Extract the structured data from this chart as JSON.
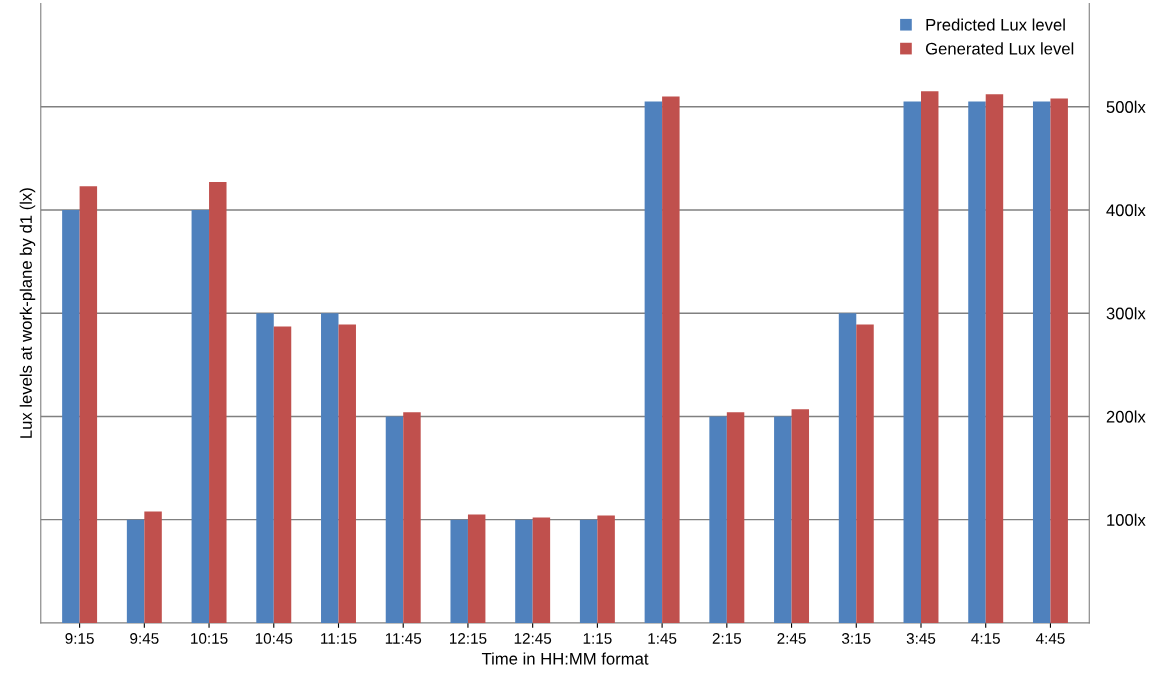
{
  "chart_data": {
    "type": "bar",
    "xlabel": "Time in HH:MM format",
    "ylabel": "Lux levels at work-plane by d1 (lx)",
    "categories": [
      "9:15",
      "9:45",
      "10:15",
      "10:45",
      "11:15",
      "11:45",
      "12:15",
      "12:45",
      "1:15",
      "1:45",
      "2:15",
      "2:45",
      "3:15",
      "3:45",
      "4:15",
      "4:45"
    ],
    "series": [
      {
        "name": "Predicted Lux level",
        "color": "#4f81bd",
        "values": [
          400,
          100,
          400,
          300,
          300,
          200,
          100,
          100,
          100,
          505,
          200,
          200,
          300,
          505,
          505,
          505
        ]
      },
      {
        "name": "Generated Lux level",
        "color": "#c0504d",
        "values": [
          423,
          108,
          427,
          287,
          289,
          204,
          105,
          102,
          104,
          510,
          204,
          207,
          289,
          515,
          512,
          508
        ]
      }
    ],
    "ylim": [
      0,
      600
    ],
    "yticks": [
      {
        "value": 100,
        "label": "100lx"
      },
      {
        "value": 200,
        "label": "200lx"
      },
      {
        "value": 300,
        "label": "300lx"
      },
      {
        "value": 400,
        "label": "400lx"
      },
      {
        "value": 500,
        "label": "500lx"
      }
    ],
    "grid": "y",
    "legend": "top right"
  }
}
